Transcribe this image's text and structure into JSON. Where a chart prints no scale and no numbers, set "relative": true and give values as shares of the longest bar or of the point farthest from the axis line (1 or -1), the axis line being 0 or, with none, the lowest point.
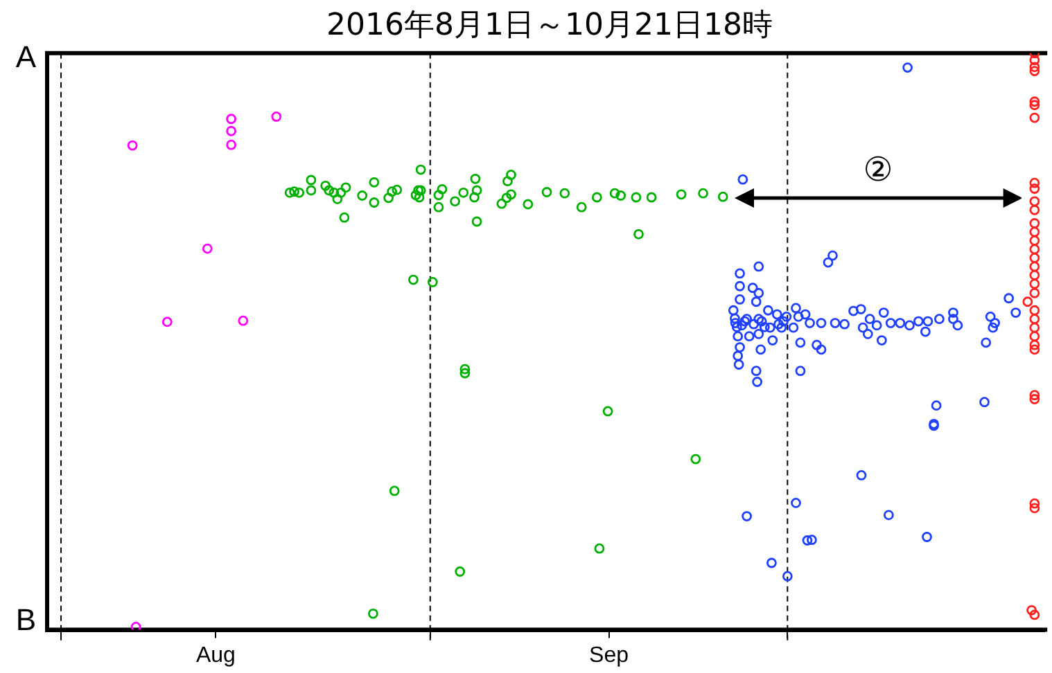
{
  "chart_data": {
    "type": "scatter",
    "title": "2016年8月1日～10月21日18時",
    "xlim": [
      "2016-07-30T20:00",
      "2016-10-22T14:00"
    ],
    "xticks": [
      {
        "value": "2016-08-01",
        "label": null
      },
      {
        "value": "2016-08-14",
        "label": "Aug"
      },
      {
        "value": "2016-09-01",
        "label": null
      },
      {
        "value": "2016-09-16",
        "label": "Sep"
      },
      {
        "value": "2016-10-01",
        "label": null
      }
    ],
    "relative": true,
    "grid": false,
    "legend": false,
    "marker": "circle",
    "ref_lines": [
      {
        "axis": "x",
        "value": "2016-08-01",
        "color": "#000000",
        "line_style": "dashed"
      },
      {
        "axis": "x",
        "value": "2016-09-01",
        "color": "#000000",
        "line_style": "dashed"
      },
      {
        "axis": "x",
        "value": "2016-10-01",
        "color": "#000000",
        "line_style": "dashed"
      }
    ],
    "annotations": [
      "A",
      "B",
      "②"
    ],
    "series": [
      {
        "color": "#ff00ff",
        "x": [
          "2016-08-07T00:00",
          "2016-08-15T07:00",
          "2016-08-15T07:00",
          "2016-08-15T07:00",
          "2016-08-19T02:00",
          "2016-08-13T07:00",
          "2016-08-09T22:00",
          "2016-08-16T07:00",
          "2016-08-07T07:00"
        ],
        "values": [
          0.84,
          0.886,
          0.865,
          0.841,
          0.89,
          0.661,
          0.534,
          0.536,
          0.005
        ]
      },
      {
        "color": "#00b000",
        "x": [
          "2016-08-20T05:00",
          "2016-08-20T14:00",
          "2016-08-21T00:00",
          "2016-08-22T00:00",
          "2016-08-22T00:00",
          "2016-08-23T05:00",
          "2016-08-23T12:00",
          "2016-08-23T22:00",
          "2016-08-24T05:00",
          "2016-08-24T12:00",
          "2016-08-24T22:00",
          "2016-08-26T07:00",
          "2016-08-27T07:00",
          "2016-08-27T07:00",
          "2016-08-28T12:00",
          "2016-08-28T19:00",
          "2016-08-29T05:00",
          "2016-08-30T19:00",
          "2016-08-31T00:00",
          "2016-08-31T02:00",
          "2016-08-31T05:00",
          "2016-08-31T05:00",
          "2016-08-24T19:00",
          "2016-08-30T14:00",
          "2016-09-01T05:00",
          "2016-08-29T00:00",
          "2016-08-27T05:00",
          "2016-09-01T17:00",
          "2016-09-02T00:00",
          "2016-09-01T17:00",
          "2016-09-03T02:00",
          "2016-09-03T19:00",
          "2016-09-04T19:00",
          "2016-09-04T22:00",
          "2016-09-04T17:00",
          "2016-09-04T22:00",
          "2016-09-07T00:00",
          "2016-09-07T10:00",
          "2016-09-07T12:00",
          "2016-09-07T19:00",
          "2016-09-07T19:00",
          "2016-09-09T05:00",
          "2016-09-10T19:00",
          "2016-09-12T07:00",
          "2016-09-13T17:00",
          "2016-09-15T00:00",
          "2016-09-16T12:00",
          "2016-09-17T00:00",
          "2016-09-18T07:00",
          "2016-09-19T14:00",
          "2016-09-22T02:00",
          "2016-09-23T22:00",
          "2016-09-25T14:00",
          "2016-09-18T12:00",
          "2016-09-03T22:00",
          "2016-09-03T22:00",
          "2016-09-15T22:00",
          "2016-09-23T07:00",
          "2016-09-15T05:00",
          "2016-09-03T12:00"
        ],
        "values": [
          0.758,
          0.76,
          0.758,
          0.762,
          0.78,
          0.77,
          0.762,
          0.758,
          0.747,
          0.758,
          0.767,
          0.753,
          0.776,
          0.741,
          0.749,
          0.76,
          0.763,
          0.754,
          0.762,
          0.75,
          0.798,
          0.762,
          0.715,
          0.607,
          0.603,
          0.241,
          0.028,
          0.754,
          0.764,
          0.733,
          0.743,
          0.758,
          0.782,
          0.762,
          0.75,
          0.708,
          0.739,
          0.749,
          0.778,
          0.789,
          0.755,
          0.738,
          0.759,
          0.757,
          0.733,
          0.75,
          0.757,
          0.753,
          0.75,
          0.75,
          0.755,
          0.757,
          0.751,
          0.686,
          0.452,
          0.445,
          0.379,
          0.296,
          0.141,
          0.101
        ]
      },
      {
        "color": "#2040ff",
        "x": [
          "2016-09-26T11:00",
          "2016-09-26T15:00",
          "2016-09-26T20:00",
          "2016-09-27T00:00",
          "2016-09-27T00:00",
          "2016-09-27T00:00",
          "2016-09-27T00:00",
          "2016-09-26T20:00",
          "2016-09-26T22:00",
          "2016-09-27T14:00",
          "2016-09-27T19:00",
          "2016-09-28T02:00",
          "2016-09-28T09:00",
          "2016-09-28T14:00",
          "2016-09-28T14:00",
          "2016-09-28T14:00",
          "2016-09-28T14:00",
          "2016-09-28T09:00",
          "2016-09-28T11:00",
          "2016-09-28T18:00",
          "2016-09-29T09:00",
          "2016-09-29T13:00",
          "2016-09-29T18:00",
          "2016-09-30T03:00",
          "2016-09-30T12:00",
          "2016-09-30T22:00",
          "2016-10-01T12:00",
          "2016-10-01T17:00",
          "2016-10-01T22:00",
          "2016-10-02T02:00",
          "2016-10-02T02:00",
          "2016-10-02T12:00",
          "2016-10-02T21:00",
          "2016-10-03T11:00",
          "2016-10-03T20:00",
          "2016-10-03T20:00",
          "2016-10-04T10:00",
          "2016-10-04T19:00",
          "2016-10-05T00:00",
          "2016-10-05T19:00",
          "2016-10-06T13:00",
          "2016-10-07T04:00",
          "2016-10-07T08:00",
          "2016-10-07T18:00",
          "2016-10-07T22:00",
          "2016-10-08T12:00",
          "2016-10-08T22:00",
          "2016-10-09T02:00",
          "2016-10-09T16:00",
          "2016-10-10T11:00",
          "2016-10-11T06:00",
          "2016-10-12T00:00",
          "2016-10-12T14:00",
          "2016-10-12T19:00",
          "2016-10-13T18:00",
          "2016-10-14T22:00",
          "2016-10-14T22:00",
          "2016-10-15T07:00",
          "2016-10-17T16:00",
          "2016-10-18T01:00",
          "2016-10-18T06:00",
          "2016-10-18T10:00",
          "2016-10-19T14:00",
          "2016-10-20T04:00",
          "2016-10-13T12:00",
          "2016-10-13T07:00",
          "2016-10-13T07:00",
          "2016-10-17T13:00",
          "2016-10-07T05:00",
          "2016-10-01T17:00",
          "2016-09-27T14:00",
          "2016-10-09T12:00",
          "2016-10-12T17:00",
          "2016-10-02T16:00",
          "2016-10-03T01:00",
          "2016-09-29T16:00",
          "2016-10-01T00:00",
          "2016-10-11T02:00",
          "2016-09-27T06:00",
          "2016-09-26T14:00",
          "2016-09-26T18:00",
          "2016-09-27T04:00",
          "2016-09-27T10:00",
          "2016-09-28T04:00",
          "2016-09-28T20:00",
          "2016-09-29T02:00",
          "2016-09-30T06:00",
          "2016-09-30T16:00"
        ],
        "values": [
          0.554,
          0.532,
          0.509,
          0.618,
          0.596,
          0.573,
          0.49,
          0.475,
          0.46,
          0.539,
          0.509,
          0.593,
          0.569,
          0.63,
          0.584,
          0.539,
          0.513,
          0.449,
          0.43,
          0.486,
          0.554,
          0.524,
          0.502,
          0.547,
          0.524,
          0.543,
          0.524,
          0.558,
          0.543,
          0.498,
          0.449,
          0.547,
          0.532,
          0.494,
          0.532,
          0.486,
          0.637,
          0.649,
          0.532,
          0.53,
          0.553,
          0.556,
          0.524,
          0.513,
          0.539,
          0.528,
          0.502,
          0.55,
          0.532,
          0.532,
          0.528,
          0.535,
          0.517,
          0.535,
          0.539,
          0.55,
          0.539,
          0.528,
          0.498,
          0.543,
          0.524,
          0.532,
          0.575,
          0.55,
          0.389,
          0.357,
          0.354,
          0.395,
          0.268,
          0.22,
          0.197,
          0.199,
          0.161,
          0.155,
          0.156,
          0.116,
          0.093,
          0.975,
          0.781,
          0.54,
          0.525,
          0.528,
          0.535,
          0.53,
          0.535,
          0.525,
          0.53,
          0.535
        ]
      },
      {
        "color": "#ff2020",
        "x": [
          "2016-10-21T18:00",
          "2016-10-21T18:00",
          "2016-10-21T18:00",
          "2016-10-21T18:00",
          "2016-10-21T18:00",
          "2016-10-21T18:00",
          "2016-10-21T18:00",
          "2016-10-21T18:00",
          "2016-10-21T18:00",
          "2016-10-21T18:00",
          "2016-10-21T18:00",
          "2016-10-21T18:00",
          "2016-10-21T18:00",
          "2016-10-21T18:00",
          "2016-10-21T18:00",
          "2016-10-21T18:00",
          "2016-10-21T18:00",
          "2016-10-21T18:00",
          "2016-10-21T18:00",
          "2016-10-21T18:00",
          "2016-10-21T04:00",
          "2016-10-21T18:00",
          "2016-10-21T18:00",
          "2016-10-21T18:00",
          "2016-10-21T18:00",
          "2016-10-21T18:00",
          "2016-10-21T18:00",
          "2016-10-21T18:00",
          "2016-10-21T18:00",
          "2016-10-21T18:00",
          "2016-10-21T18:00",
          "2016-10-21T12:00",
          "2016-10-21T18:00"
        ],
        "values": [
          1,
          0.988,
          0.976,
          0.969,
          0.916,
          0.91,
          0.888,
          0.775,
          0.765,
          0.743,
          0.728,
          0.705,
          0.69,
          0.675,
          0.66,
          0.645,
          0.63,
          0.615,
          0.6,
          0.584,
          0.569,
          0.554,
          0.539,
          0.524,
          0.509,
          0.494,
          0.486,
          0.407,
          0.4,
          0.219,
          0.211,
          0.034,
          0.026
        ]
      }
    ]
  }
}
